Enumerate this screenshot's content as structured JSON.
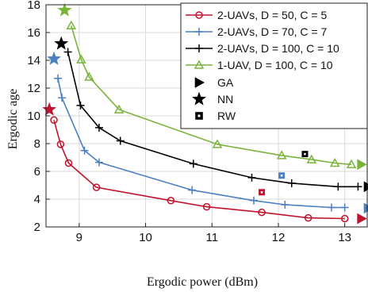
{
  "chart_data": {
    "type": "line",
    "xlabel": "Ergodic power (dBm)",
    "ylabel": "Ergodic age",
    "xlim": [
      8.5,
      13.35
    ],
    "ylim": [
      2,
      18
    ],
    "xticks": [
      9,
      10,
      11,
      12,
      13
    ],
    "yticks": [
      2,
      4,
      6,
      8,
      10,
      12,
      14,
      16,
      18
    ],
    "grid": true,
    "legend_position": "top-right",
    "series": [
      {
        "name": "2-UAVs, D = 50, C = 5",
        "color": "#c0142e",
        "marker": "circle",
        "x": [
          8.62,
          8.72,
          8.84,
          9.26,
          10.38,
          10.92,
          11.75,
          12.45,
          13.0
        ],
        "y": [
          9.7,
          7.95,
          6.6,
          4.85,
          3.9,
          3.45,
          3.05,
          2.65,
          2.6
        ]
      },
      {
        "name": "2-UAVs, D = 70, C = 7",
        "color": "#4a7fc1",
        "marker": "plus",
        "x": [
          8.68,
          8.74,
          9.08,
          9.3,
          10.7,
          11.63,
          12.1,
          12.8,
          13.0
        ],
        "y": [
          12.7,
          11.3,
          7.5,
          6.65,
          4.65,
          3.9,
          3.6,
          3.4,
          3.4
        ]
      },
      {
        "name": "2-UAVs, D = 100, C = 10",
        "color": "#000000",
        "marker": "plus",
        "x": [
          8.83,
          9.02,
          9.3,
          9.62,
          10.72,
          11.6,
          12.2,
          12.9,
          13.2
        ],
        "y": [
          14.6,
          10.75,
          9.15,
          8.2,
          6.55,
          5.55,
          5.15,
          4.9,
          4.9
        ]
      },
      {
        "name": "1-UAV, D = 100, C = 10",
        "color": "#7ab33a",
        "marker": "triangle",
        "x": [
          8.88,
          9.03,
          9.15,
          9.6,
          11.08,
          12.05,
          12.5,
          12.85,
          13.1
        ],
        "y": [
          16.5,
          14.05,
          12.8,
          10.45,
          7.95,
          7.15,
          6.85,
          6.6,
          6.5
        ]
      }
    ],
    "schemes": [
      {
        "name": "GA",
        "marker": "triangle-right"
      },
      {
        "name": "NN",
        "marker": "star"
      },
      {
        "name": "RW",
        "marker": "square-dot"
      }
    ],
    "points": [
      {
        "scheme": "GA",
        "series": 0,
        "x": 13.25,
        "y": 2.6
      },
      {
        "scheme": "GA",
        "series": 1,
        "x": 13.35,
        "y": 3.35
      },
      {
        "scheme": "GA",
        "series": 2,
        "x": 13.35,
        "y": 4.9
      },
      {
        "scheme": "GA",
        "series": 3,
        "x": 13.25,
        "y": 6.5
      },
      {
        "scheme": "NN",
        "series": 0,
        "x": 8.55,
        "y": 10.45
      },
      {
        "scheme": "NN",
        "series": 1,
        "x": 8.62,
        "y": 14.1
      },
      {
        "scheme": "NN",
        "series": 2,
        "x": 8.73,
        "y": 15.2
      },
      {
        "scheme": "NN",
        "series": 3,
        "x": 8.78,
        "y": 17.6
      },
      {
        "scheme": "RW",
        "series": 0,
        "x": 11.75,
        "y": 4.5
      },
      {
        "scheme": "RW",
        "series": 1,
        "x": 12.05,
        "y": 5.7
      },
      {
        "scheme": "RW",
        "series": 2,
        "x": 12.4,
        "y": 7.25
      },
      {
        "scheme": "RW",
        "series": 3,
        "x": 12.2,
        "y": 9.35
      }
    ]
  }
}
